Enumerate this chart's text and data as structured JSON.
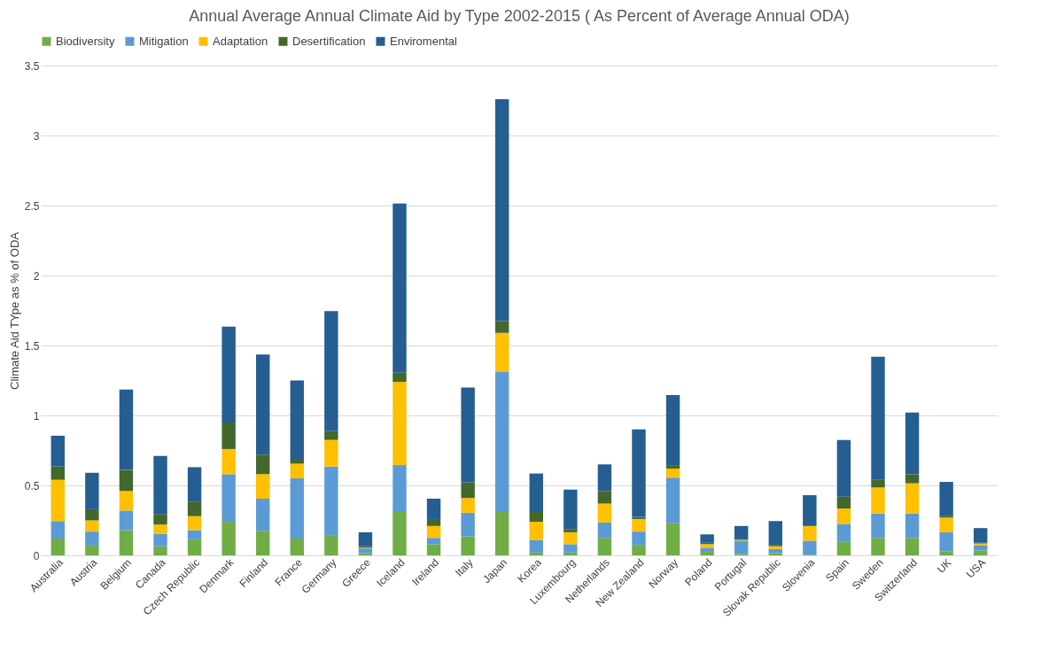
{
  "chart_data": {
    "type": "bar",
    "title": "Annual Average Annual Climate Aid by Type 2002-2015 ( As Percent of Average Annual ODA)",
    "ylabel": "Climate Aid TYpe as % of ODA",
    "stacked": true,
    "legend": "top",
    "grid": "y",
    "ylim": [
      0,
      3.5
    ],
    "yticks": [
      0,
      0.5,
      1,
      1.5,
      2,
      2.5,
      3,
      3.5
    ],
    "categories": [
      "Australia",
      "Austria",
      "Belgium",
      "Canada",
      "Czech Republic",
      "Denmark",
      "Finland",
      "France",
      "Germany",
      "Greece",
      "Iceland",
      "Ireland",
      "Italy",
      "Japan",
      "Korea",
      "Luxembourg",
      "Netherlands",
      "New Zealand",
      "Norway",
      "Poland",
      "Portugal",
      "Slovak Republic",
      "Slovenia",
      "Spain",
      "Sweden",
      "Switzerland",
      "UK",
      "USA"
    ],
    "series": [
      {
        "name": "Biodiversity",
        "color": "#70ad47",
        "values": [
          0.12,
          0.07,
          0.18,
          0.065,
          0.115,
          0.24,
          0.175,
          0.12,
          0.145,
          0.015,
          0.31,
          0.08,
          0.135,
          0.31,
          0.02,
          0.02,
          0.125,
          0.075,
          0.23,
          0.025,
          0.01,
          0.015,
          0.005,
          0.1,
          0.125,
          0.125,
          0.03,
          0.035
        ]
      },
      {
        "name": "Mitigation",
        "color": "#5b9bd5",
        "values": [
          0.125,
          0.1,
          0.14,
          0.09,
          0.065,
          0.34,
          0.23,
          0.43,
          0.49,
          0.035,
          0.335,
          0.045,
          0.17,
          1.0,
          0.09,
          0.06,
          0.11,
          0.095,
          0.325,
          0.03,
          0.095,
          0.03,
          0.1,
          0.125,
          0.175,
          0.175,
          0.135,
          0.035
        ]
      },
      {
        "name": "Adaptation",
        "color": "#ffc000",
        "values": [
          0.295,
          0.08,
          0.14,
          0.065,
          0.1,
          0.18,
          0.175,
          0.105,
          0.19,
          0.005,
          0.595,
          0.085,
          0.105,
          0.28,
          0.13,
          0.085,
          0.135,
          0.09,
          0.065,
          0.025,
          0.005,
          0.02,
          0.105,
          0.11,
          0.185,
          0.215,
          0.105,
          0.015
        ]
      },
      {
        "name": "Desertification",
        "color": "#43682b",
        "values": [
          0.095,
          0.08,
          0.15,
          0.075,
          0.105,
          0.19,
          0.14,
          0.035,
          0.065,
          0.01,
          0.065,
          0.05,
          0.11,
          0.085,
          0.07,
          0.02,
          0.09,
          0.015,
          0.025,
          0.01,
          0.005,
          0.01,
          0,
          0.085,
          0.055,
          0.065,
          0.01,
          0.005
        ]
      },
      {
        "name": "Enviromental",
        "color": "#255e91",
        "values": [
          0.22,
          0.26,
          0.575,
          0.415,
          0.245,
          0.685,
          0.715,
          0.56,
          0.855,
          0.1,
          1.21,
          0.145,
          0.68,
          1.585,
          0.275,
          0.285,
          0.19,
          0.625,
          0.5,
          0.06,
          0.095,
          0.17,
          0.22,
          0.405,
          0.88,
          0.44,
          0.245,
          0.105
        ]
      }
    ]
  }
}
